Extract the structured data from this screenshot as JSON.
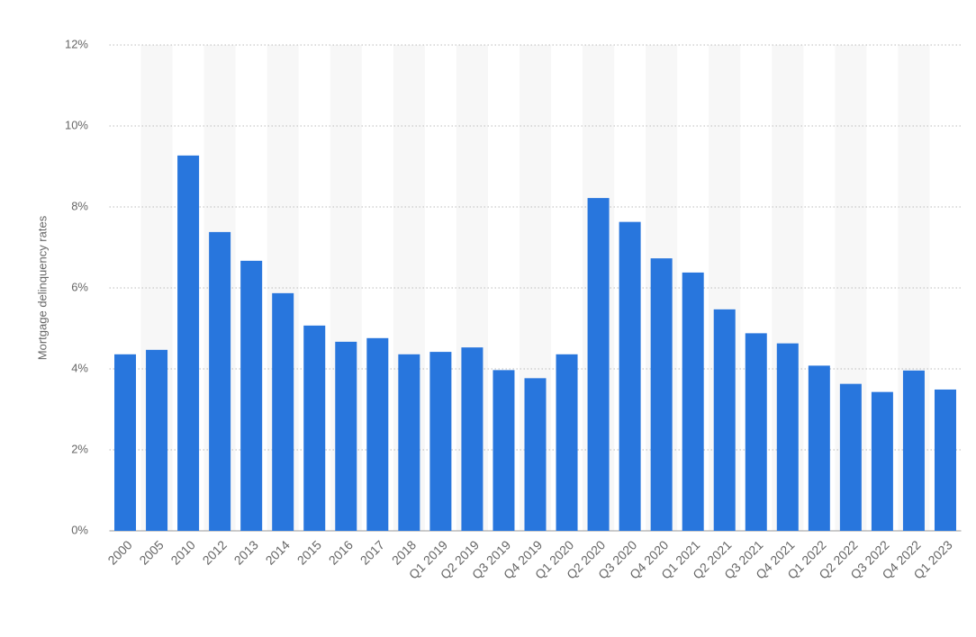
{
  "chart_data": {
    "type": "bar",
    "y_label": "Mortgage delinquency rates",
    "categories": [
      "2000",
      "2005",
      "2010",
      "2012",
      "2013",
      "2014",
      "2015",
      "2016",
      "2017",
      "2018",
      "Q1 2019",
      "Q2 2019",
      "Q3 2019",
      "Q4 2019",
      "Q1 2020",
      "Q2 2020",
      "Q3 2020",
      "Q4 2020",
      "Q1 2021",
      "Q2 2021",
      "Q3 2021",
      "Q4 2021",
      "Q1 2022",
      "Q2 2022",
      "Q3 2022",
      "Q4 2022",
      "Q1 2023"
    ],
    "values": [
      4.36,
      4.47,
      9.27,
      7.38,
      6.67,
      5.87,
      5.07,
      4.67,
      4.76,
      4.36,
      4.42,
      4.53,
      3.97,
      3.77,
      4.36,
      8.22,
      7.63,
      6.73,
      6.38,
      5.47,
      4.88,
      4.63,
      4.08,
      3.63,
      3.43,
      3.96,
      3.49
    ],
    "color": "#2876dd",
    "ylim": [
      0,
      12
    ],
    "yticks": [
      {
        "value": 0,
        "label": "0%"
      },
      {
        "value": 2,
        "label": "2%"
      },
      {
        "value": 4,
        "label": "4%"
      },
      {
        "value": 6,
        "label": "6%"
      },
      {
        "value": 8,
        "label": "8%"
      },
      {
        "value": 10,
        "label": "10%"
      },
      {
        "value": 12,
        "label": "12%"
      }
    ],
    "grid": true
  }
}
